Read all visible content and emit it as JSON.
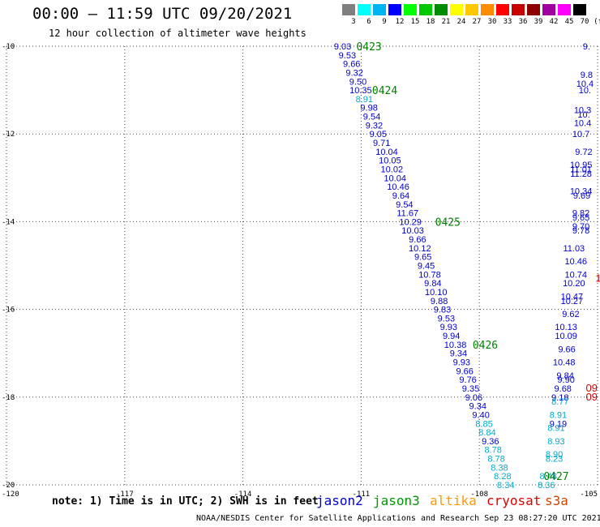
{
  "header": {
    "title": "00:00 – 11:59 UTC 09/20/2021",
    "subtitle": "12 hour collection of altimeter wave heights"
  },
  "color_scale": {
    "unit": "(ft)",
    "bins": [
      {
        "label": "3",
        "color": "#7f7f7f"
      },
      {
        "label": "6",
        "color": "#00ffff"
      },
      {
        "label": "9",
        "color": "#00b4f0"
      },
      {
        "label": "12",
        "color": "#0000ff"
      },
      {
        "label": "15",
        "color": "#00ff00"
      },
      {
        "label": "18",
        "color": "#00c800"
      },
      {
        "label": "21",
        "color": "#008c00"
      },
      {
        "label": "24",
        "color": "#ffff00"
      },
      {
        "label": "27",
        "color": "#ffc800"
      },
      {
        "label": "30",
        "color": "#ff8c00"
      },
      {
        "label": "33",
        "color": "#ff0000"
      },
      {
        "label": "36",
        "color": "#c80000"
      },
      {
        "label": "39",
        "color": "#8c0000"
      },
      {
        "label": "42",
        "color": "#a000a0"
      },
      {
        "label": "45",
        "color": "#ff00ff"
      },
      {
        "label": "70",
        "color": "#000000"
      }
    ]
  },
  "chart_data": {
    "type": "scatter",
    "xlim": [
      -120,
      -105
    ],
    "ylim": [
      -20,
      -10
    ],
    "x_ticks": [
      "-120",
      "-117",
      "-114",
      "-111",
      "-108",
      "-105"
    ],
    "y_ticks": [
      "-10",
      "-12",
      "-14",
      "-16",
      "-18",
      "-20"
    ],
    "grid": true,
    "colors": {
      "jason2": "#0000cc",
      "jason3": "#009900",
      "altika": "#ff9900",
      "cryosat": "#dd0000",
      "s3a": "#cc4400",
      "light": "#00aacc",
      "time": "#008000"
    },
    "series": [
      {
        "name": "jason2",
        "points": [
          {
            "lon": -111.47,
            "lat": -10.0,
            "value": "9.03",
            "tone": "dark"
          },
          {
            "lon": -111.35,
            "lat": -10.2,
            "value": "9.53",
            "tone": "dark"
          },
          {
            "lon": -111.24,
            "lat": -10.4,
            "value": "9.66",
            "tone": "dark"
          },
          {
            "lon": -111.17,
            "lat": -10.6,
            "value": "9.32",
            "tone": "dark"
          },
          {
            "lon": -111.08,
            "lat": -10.8,
            "value": "9.50",
            "tone": "dark"
          },
          {
            "lon": -111.01,
            "lat": -11.0,
            "value": "10.35",
            "tone": "dark"
          },
          {
            "lon": -110.92,
            "lat": -11.2,
            "value": "8.91",
            "tone": "light"
          },
          {
            "lon": -110.8,
            "lat": -11.4,
            "value": "9.98",
            "tone": "dark"
          },
          {
            "lon": -110.73,
            "lat": -11.6,
            "value": "9.54",
            "tone": "dark"
          },
          {
            "lon": -110.67,
            "lat": -11.8,
            "value": "9.32",
            "tone": "dark"
          },
          {
            "lon": -110.57,
            "lat": -12.0,
            "value": "9.05",
            "tone": "dark"
          },
          {
            "lon": -110.48,
            "lat": -12.2,
            "value": "9.71",
            "tone": "dark"
          },
          {
            "lon": -110.35,
            "lat": -12.4,
            "value": "10.04",
            "tone": "dark"
          },
          {
            "lon": -110.27,
            "lat": -12.6,
            "value": "10.05",
            "tone": "dark"
          },
          {
            "lon": -110.22,
            "lat": -12.8,
            "value": "10.02",
            "tone": "dark"
          },
          {
            "lon": -110.14,
            "lat": -13.0,
            "value": "10.04",
            "tone": "dark"
          },
          {
            "lon": -110.06,
            "lat": -13.2,
            "value": "10.46",
            "tone": "dark"
          },
          {
            "lon": -109.99,
            "lat": -13.4,
            "value": "9.64",
            "tone": "dark"
          },
          {
            "lon": -109.9,
            "lat": -13.6,
            "value": "9.54",
            "tone": "dark"
          },
          {
            "lon": -109.82,
            "lat": -13.8,
            "value": "11.67",
            "tone": "dark"
          },
          {
            "lon": -109.75,
            "lat": -14.0,
            "value": "10.29",
            "tone": "dark"
          },
          {
            "lon": -109.69,
            "lat": -14.2,
            "value": "10.03",
            "tone": "dark"
          },
          {
            "lon": -109.57,
            "lat": -14.4,
            "value": "9.66",
            "tone": "dark"
          },
          {
            "lon": -109.51,
            "lat": -14.6,
            "value": "10.12",
            "tone": "dark"
          },
          {
            "lon": -109.43,
            "lat": -14.8,
            "value": "9.65",
            "tone": "dark"
          },
          {
            "lon": -109.35,
            "lat": -15.0,
            "value": "9.45",
            "tone": "dark"
          },
          {
            "lon": -109.26,
            "lat": -15.2,
            "value": "10.78",
            "tone": "dark"
          },
          {
            "lon": -109.18,
            "lat": -15.4,
            "value": "9.84",
            "tone": "dark"
          },
          {
            "lon": -109.1,
            "lat": -15.6,
            "value": "10.10",
            "tone": "dark"
          },
          {
            "lon": -109.02,
            "lat": -15.8,
            "value": "9.88",
            "tone": "dark"
          },
          {
            "lon": -108.94,
            "lat": -16.0,
            "value": "9.83",
            "tone": "dark"
          },
          {
            "lon": -108.84,
            "lat": -16.2,
            "value": "9.53",
            "tone": "dark"
          },
          {
            "lon": -108.78,
            "lat": -16.4,
            "value": "9.93",
            "tone": "dark"
          },
          {
            "lon": -108.71,
            "lat": -16.6,
            "value": "9.94",
            "tone": "dark"
          },
          {
            "lon": -108.61,
            "lat": -16.8,
            "value": "10.38",
            "tone": "dark"
          },
          {
            "lon": -108.53,
            "lat": -17.0,
            "value": "9.34",
            "tone": "dark"
          },
          {
            "lon": -108.45,
            "lat": -17.2,
            "value": "9.93",
            "tone": "dark"
          },
          {
            "lon": -108.37,
            "lat": -17.4,
            "value": "9.66",
            "tone": "dark"
          },
          {
            "lon": -108.29,
            "lat": -17.6,
            "value": "9.76",
            "tone": "dark"
          },
          {
            "lon": -108.22,
            "lat": -17.8,
            "value": "9.35",
            "tone": "dark"
          },
          {
            "lon": -108.14,
            "lat": -18.0,
            "value": "9.06",
            "tone": "dark"
          },
          {
            "lon": -108.04,
            "lat": -18.2,
            "value": "9.34",
            "tone": "dark"
          },
          {
            "lon": -107.96,
            "lat": -18.4,
            "value": "9.40",
            "tone": "dark"
          },
          {
            "lon": -107.88,
            "lat": -18.6,
            "value": "8.85",
            "tone": "light"
          },
          {
            "lon": -107.8,
            "lat": -18.8,
            "value": "8.84",
            "tone": "light"
          },
          {
            "lon": -107.72,
            "lat": -19.0,
            "value": "9.36",
            "tone": "dark"
          },
          {
            "lon": -107.65,
            "lat": -19.2,
            "value": "8.78",
            "tone": "light"
          },
          {
            "lon": -107.57,
            "lat": -19.4,
            "value": "8.78",
            "tone": "light"
          },
          {
            "lon": -107.49,
            "lat": -19.6,
            "value": "8.38",
            "tone": "light"
          },
          {
            "lon": -107.41,
            "lat": -19.8,
            "value": "8.28",
            "tone": "light"
          },
          {
            "lon": -107.33,
            "lat": -20.0,
            "value": "8.34",
            "tone": "light"
          },
          {
            "lon": -105.28,
            "lat": -10.0,
            "value": "9.",
            "tone": "dark"
          },
          {
            "lon": -105.28,
            "lat": -10.65,
            "value": "9.8",
            "tone": "dark"
          },
          {
            "lon": -105.32,
            "lat": -10.85,
            "value": "10.4",
            "tone": "dark"
          },
          {
            "lon": -105.32,
            "lat": -11.0,
            "value": "10.",
            "tone": "dark"
          },
          {
            "lon": -105.38,
            "lat": -11.45,
            "value": "10.3",
            "tone": "dark"
          },
          {
            "lon": -105.35,
            "lat": -11.55,
            "value": "10.",
            "tone": "dark"
          },
          {
            "lon": -105.38,
            "lat": -11.75,
            "value": "10.4",
            "tone": "dark"
          },
          {
            "lon": -105.42,
            "lat": -12.0,
            "value": "10.7",
            "tone": "dark"
          },
          {
            "lon": -105.35,
            "lat": -12.4,
            "value": "9.72",
            "tone": "dark"
          },
          {
            "lon": -105.42,
            "lat": -12.7,
            "value": "10.95",
            "tone": "dark"
          },
          {
            "lon": -105.42,
            "lat": -12.8,
            "value": "11.01",
            "tone": "dark"
          },
          {
            "lon": -105.42,
            "lat": -12.9,
            "value": "11.28",
            "tone": "dark"
          },
          {
            "lon": -105.42,
            "lat": -13.3,
            "value": "10.34",
            "tone": "dark"
          },
          {
            "lon": -105.4,
            "lat": -13.4,
            "value": "9.69",
            "tone": "dark"
          },
          {
            "lon": -105.42,
            "lat": -13.8,
            "value": "9.82",
            "tone": "dark"
          },
          {
            "lon": -105.42,
            "lat": -13.9,
            "value": "9.65",
            "tone": "dark"
          },
          {
            "lon": -105.42,
            "lat": -14.1,
            "value": "9.70",
            "tone": "dark"
          },
          {
            "lon": -105.42,
            "lat": -14.2,
            "value": "9.78",
            "tone": "dark"
          },
          {
            "lon": -105.6,
            "lat": -14.6,
            "value": "11.03",
            "tone": "dark"
          },
          {
            "lon": -105.55,
            "lat": -14.9,
            "value": "10.46",
            "tone": "dark"
          },
          {
            "lon": -105.55,
            "lat": -15.2,
            "value": "10.74",
            "tone": "dark"
          },
          {
            "lon": -105.6,
            "lat": -15.4,
            "value": "10.20",
            "tone": "dark"
          },
          {
            "lon": -105.65,
            "lat": -15.7,
            "value": "10.47",
            "tone": "dark"
          },
          {
            "lon": -105.65,
            "lat": -15.8,
            "value": "10.27",
            "tone": "dark"
          },
          {
            "lon": -105.68,
            "lat": -16.1,
            "value": "9.62",
            "tone": "dark"
          },
          {
            "lon": -105.8,
            "lat": -16.4,
            "value": "10.13",
            "tone": "dark"
          },
          {
            "lon": -105.8,
            "lat": -16.6,
            "value": "10.09",
            "tone": "dark"
          },
          {
            "lon": -105.78,
            "lat": -16.9,
            "value": "9.66",
            "tone": "dark"
          },
          {
            "lon": -105.85,
            "lat": -17.2,
            "value": "10.48",
            "tone": "dark"
          },
          {
            "lon": -105.82,
            "lat": -17.5,
            "value": "9.84",
            "tone": "dark"
          },
          {
            "lon": -105.8,
            "lat": -17.6,
            "value": "9.90",
            "tone": "dark"
          },
          {
            "lon": -105.88,
            "lat": -17.8,
            "value": "9.68",
            "tone": "dark"
          },
          {
            "lon": -105.95,
            "lat": -18.0,
            "value": "9.18",
            "tone": "dark"
          },
          {
            "lon": -105.95,
            "lat": -18.1,
            "value": "8.77",
            "tone": "light"
          },
          {
            "lon": -106.0,
            "lat": -18.4,
            "value": "8.91",
            "tone": "light"
          },
          {
            "lon": -106.0,
            "lat": -18.6,
            "value": "9.19",
            "tone": "dark"
          },
          {
            "lon": -106.05,
            "lat": -18.7,
            "value": "8.91",
            "tone": "light"
          },
          {
            "lon": -106.05,
            "lat": -19.0,
            "value": "8.93",
            "tone": "light"
          },
          {
            "lon": -106.1,
            "lat": -19.3,
            "value": "8.90",
            "tone": "light"
          },
          {
            "lon": -106.1,
            "lat": -19.4,
            "value": "8.23",
            "tone": "light"
          },
          {
            "lon": -106.25,
            "lat": -19.8,
            "value": "8.48",
            "tone": "light"
          },
          {
            "lon": -106.3,
            "lat": -20.0,
            "value": "8.36",
            "tone": "light"
          }
        ]
      },
      {
        "name": "cryosat",
        "points": [
          {
            "lon": -105.15,
            "lat": -17.8,
            "value": "09",
            "tone": "red"
          },
          {
            "lon": -105.15,
            "lat": -18.0,
            "value": "09",
            "tone": "red"
          },
          {
            "lon": -104.98,
            "lat": -15.3,
            "value": "1",
            "tone": "red"
          }
        ]
      }
    ],
    "time_labels": [
      {
        "lon": -110.8,
        "lat": -10.0,
        "label": "0423"
      },
      {
        "lon": -110.4,
        "lat": -11.0,
        "label": "0424"
      },
      {
        "lon": -108.8,
        "lat": -14.0,
        "label": "0425"
      },
      {
        "lon": -107.85,
        "lat": -16.8,
        "label": "0426"
      },
      {
        "lon": -106.05,
        "lat": -19.8,
        "label": "0427"
      }
    ]
  },
  "footer": {
    "note": "note: 1) Time is in UTC; 2) SWH is in feet",
    "satellites": [
      {
        "name": "jason2",
        "color": "#0000cc"
      },
      {
        "name": "jason3",
        "color": "#009900"
      },
      {
        "name": "altika",
        "color": "#ff9900"
      },
      {
        "name": "cryosat",
        "color": "#dd0000"
      },
      {
        "name": "s3a",
        "color": "#cc4400"
      }
    ],
    "credit": "NOAA/NESDIS Center for Satellite Applications and Research   Sep 23 08:27:20 UTC 2021"
  }
}
